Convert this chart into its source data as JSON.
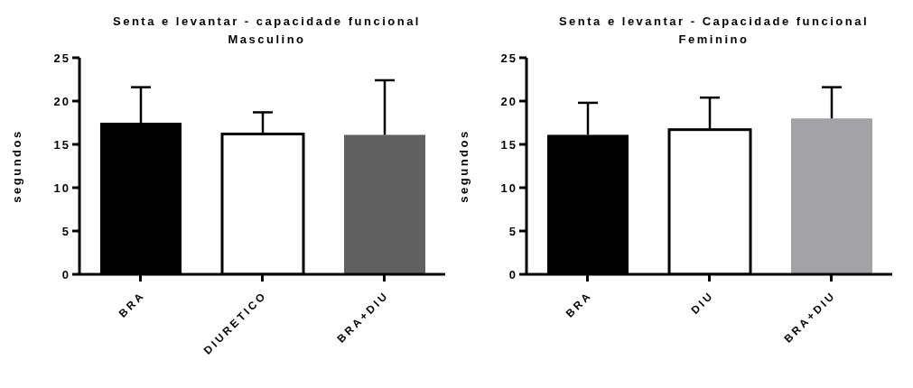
{
  "chart_data": [
    {
      "type": "bar",
      "title": "Senta e levantar - capacidade funcional",
      "subtitle": "Masculino",
      "ylabel": "segundos",
      "categories": [
        "BRA",
        "DIURETICO",
        "BRA+DIU"
      ],
      "values": [
        17.5,
        16.2,
        16.1
      ],
      "colors": [
        "#000000",
        "#ffffff",
        "#606060"
      ],
      "errors": [
        [
          17.5,
          21.6
        ],
        [
          16.2,
          18.7
        ],
        [
          16.1,
          22.4
        ]
      ],
      "ylim": [
        0,
        25
      ],
      "yticks": [
        0,
        5,
        10,
        15,
        20,
        25
      ],
      "grid": false,
      "legend": false
    },
    {
      "type": "bar",
      "title": "Senta e levantar - Capacidade funcional",
      "subtitle": "Feminino",
      "ylabel": "segundos",
      "categories": [
        "BRA",
        "DIU",
        "BRA+DIU"
      ],
      "values": [
        16.1,
        16.7,
        18.0
      ],
      "colors": [
        "#000000",
        "#ffffff",
        "#a3a3a7"
      ],
      "errors": [
        [
          16.1,
          19.8
        ],
        [
          16.7,
          20.4
        ],
        [
          18.0,
          21.6
        ]
      ],
      "ylim": [
        0,
        25
      ],
      "yticks": [
        0,
        5,
        10,
        15,
        20,
        25
      ],
      "grid": false,
      "legend": false
    }
  ]
}
